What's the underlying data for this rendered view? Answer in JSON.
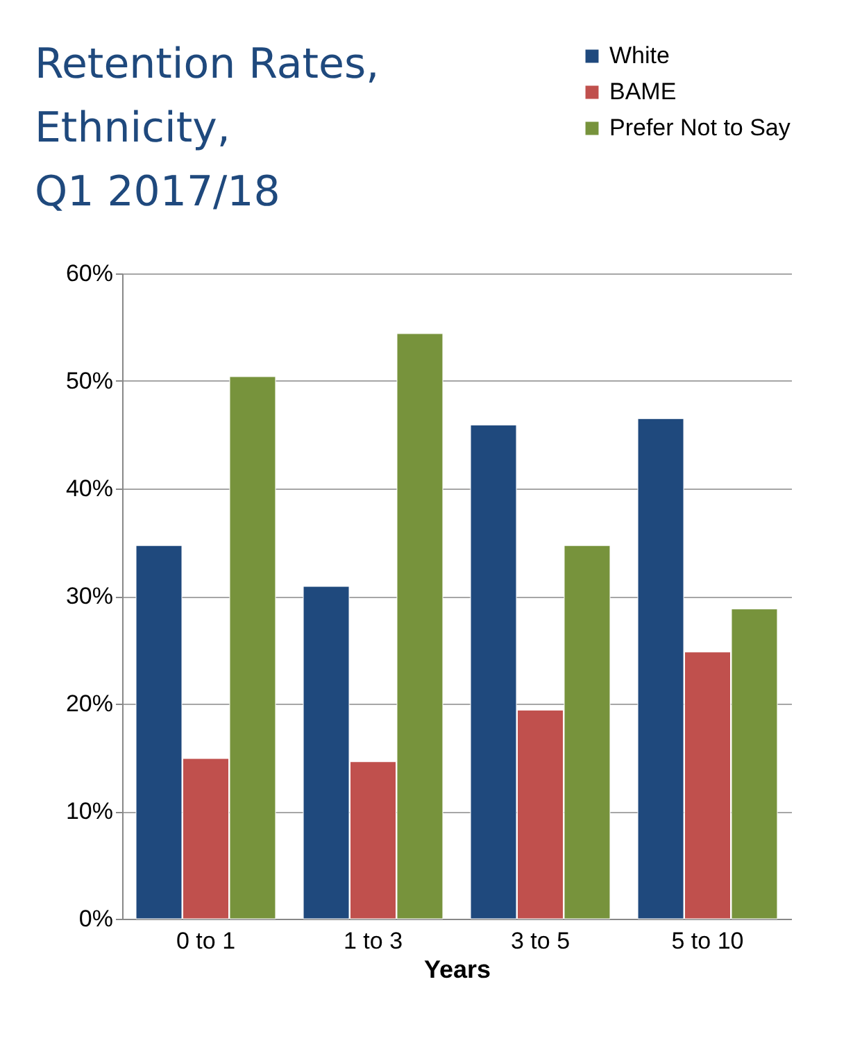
{
  "chart_data": {
    "type": "bar",
    "title": [
      "Retention Rates,",
      "Ethnicity,",
      "Q1 2017/18"
    ],
    "xlabel": "Years",
    "categories": [
      "0 to 1",
      "1 to 3",
      "3 to 5",
      "5 to 10"
    ],
    "series": [
      {
        "name": "White",
        "color": "#1f497d",
        "values": [
          34.7,
          30.9,
          45.9,
          46.5
        ]
      },
      {
        "name": "BAME",
        "color": "#c0504d",
        "values": [
          14.9,
          14.6,
          19.4,
          24.8
        ]
      },
      {
        "name": "Prefer Not to Say",
        "color": "#77933c",
        "values": [
          50.4,
          54.4,
          34.7,
          28.8
        ]
      }
    ],
    "ylim": [
      0,
      60
    ],
    "yticks": [
      {
        "value": 0,
        "label": "0%"
      },
      {
        "value": 10,
        "label": "10%"
      },
      {
        "value": 20,
        "label": "20%"
      },
      {
        "value": 30,
        "label": "30%"
      },
      {
        "value": 40,
        "label": "40%"
      },
      {
        "value": 50,
        "label": "50%"
      },
      {
        "value": 60,
        "label": "60%"
      }
    ],
    "grid": "y",
    "legend": "top right"
  }
}
